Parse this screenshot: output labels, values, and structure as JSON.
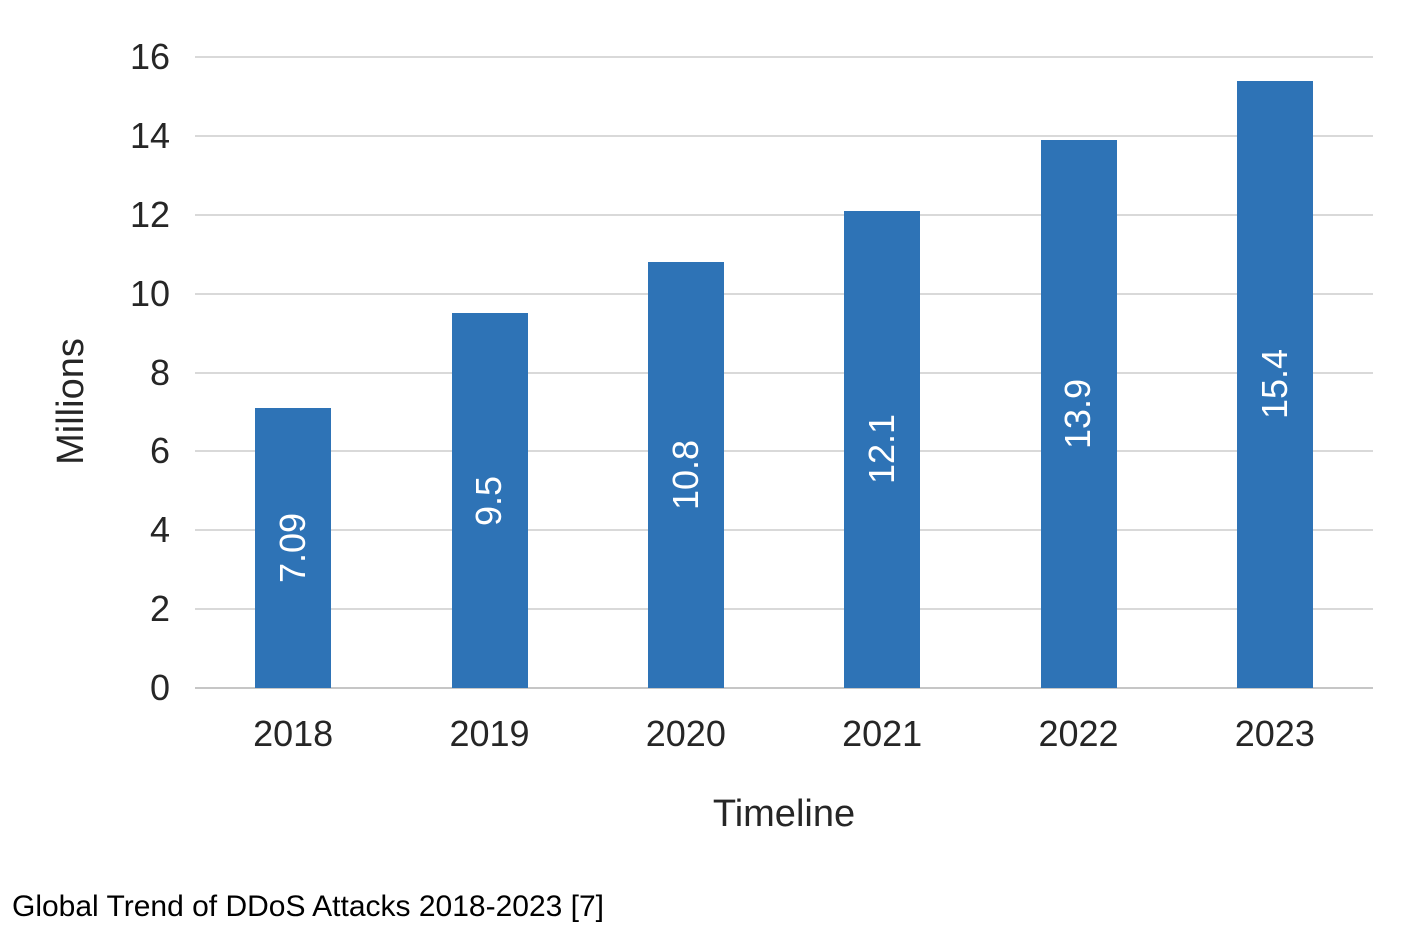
{
  "caption": "Global Trend of DDoS Attacks 2018-2023 [7]",
  "chart_data": {
    "type": "bar",
    "title": "",
    "categories": [
      "2018",
      "2019",
      "2020",
      "2021",
      "2022",
      "2023"
    ],
    "values": [
      7.09,
      9.5,
      10.8,
      12.1,
      13.9,
      15.4
    ],
    "data_labels": [
      "7.09",
      "9.5",
      "10.8",
      "12.1",
      "13.9",
      "15.4"
    ],
    "xlabel": "Timeline",
    "ylabel": "Millions",
    "ylim": [
      0,
      16
    ],
    "yticks": [
      0,
      2,
      4,
      6,
      8,
      10,
      12,
      14,
      16
    ],
    "grid": true,
    "legend": false,
    "data_label_rotation": "vertical-bottom-up",
    "colors": {
      "bar": "#2E73B6",
      "gridline": "#D9D9D9",
      "axis_line": "#C6C6C6",
      "data_label": "#FFFFFF",
      "chart_text": "#262626"
    }
  }
}
